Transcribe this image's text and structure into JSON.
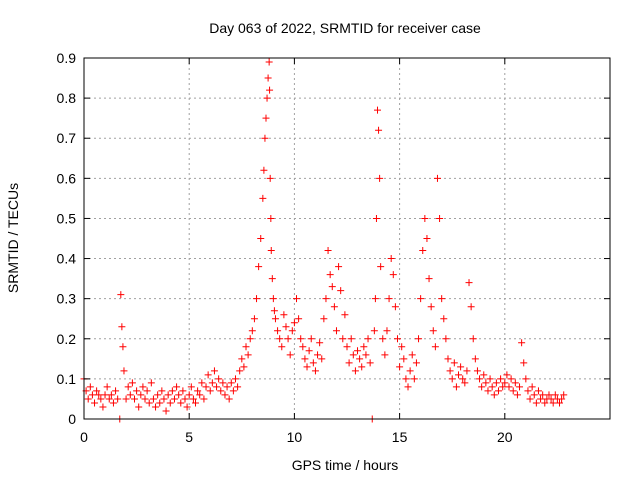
{
  "chart_data": {
    "type": "scatter",
    "title": "Day 063 of 2022, SRMTID for receiver case",
    "xlabel": "GPS time / hours",
    "ylabel": "SRMTID / TECUs",
    "xlim": [
      0,
      25
    ],
    "ylim": [
      0,
      0.9
    ],
    "xticks": [
      0,
      5,
      10,
      15,
      20
    ],
    "yticks": [
      0,
      0.1,
      0.2,
      0.3,
      0.4,
      0.5,
      0.6,
      0.7,
      0.8,
      0.9
    ],
    "xtick_labels": [
      "0",
      "5",
      "10",
      "15",
      "20"
    ],
    "ytick_labels": [
      "0",
      "0.1",
      "0.2",
      "0.3",
      "0.4",
      "0.5",
      "0.6",
      "0.7",
      "0.8",
      "0.9"
    ],
    "grid": true,
    "marker": "+",
    "color": "#ff0000",
    "series": [
      {
        "name": "SRMTID",
        "x": [
          0.0,
          0.1,
          0.2,
          0.3,
          0.4,
          0.5,
          0.6,
          0.7,
          0.8,
          0.9,
          1.0,
          1.1,
          1.2,
          1.3,
          1.4,
          1.5,
          1.6,
          1.7,
          1.75,
          1.8,
          1.85,
          1.9,
          2.0,
          2.1,
          2.2,
          2.3,
          2.4,
          2.5,
          2.6,
          2.7,
          2.8,
          2.9,
          3.0,
          3.1,
          3.2,
          3.3,
          3.4,
          3.5,
          3.6,
          3.7,
          3.8,
          3.9,
          4.0,
          4.1,
          4.2,
          4.3,
          4.4,
          4.5,
          4.6,
          4.7,
          4.8,
          4.9,
          5.0,
          5.1,
          5.2,
          5.3,
          5.4,
          5.5,
          5.6,
          5.7,
          5.8,
          5.9,
          6.0,
          6.1,
          6.2,
          6.3,
          6.4,
          6.5,
          6.6,
          6.7,
          6.8,
          6.9,
          7.0,
          7.1,
          7.2,
          7.3,
          7.4,
          7.5,
          7.6,
          7.7,
          7.8,
          7.9,
          8.0,
          8.1,
          8.2,
          8.3,
          8.4,
          8.5,
          8.55,
          8.6,
          8.65,
          8.7,
          8.75,
          8.8,
          8.82,
          8.85,
          8.88,
          8.9,
          8.95,
          9.0,
          9.05,
          9.1,
          9.2,
          9.3,
          9.4,
          9.5,
          9.6,
          9.7,
          9.8,
          9.9,
          10.0,
          10.1,
          10.2,
          10.3,
          10.4,
          10.5,
          10.6,
          10.7,
          10.8,
          10.9,
          11.0,
          11.1,
          11.2,
          11.3,
          11.4,
          11.5,
          11.6,
          11.7,
          11.8,
          11.9,
          12.0,
          12.1,
          12.2,
          12.3,
          12.4,
          12.5,
          12.6,
          12.7,
          12.8,
          12.9,
          13.0,
          13.1,
          13.2,
          13.3,
          13.4,
          13.5,
          13.6,
          13.7,
          13.8,
          13.85,
          13.9,
          13.95,
          14.0,
          14.05,
          14.1,
          14.2,
          14.3,
          14.4,
          14.5,
          14.6,
          14.7,
          14.8,
          14.9,
          15.0,
          15.1,
          15.2,
          15.3,
          15.4,
          15.5,
          15.6,
          15.7,
          15.8,
          15.9,
          16.0,
          16.1,
          16.2,
          16.3,
          16.4,
          16.5,
          16.6,
          16.7,
          16.8,
          16.9,
          17.0,
          17.1,
          17.2,
          17.3,
          17.4,
          17.5,
          17.6,
          17.7,
          17.8,
          17.9,
          18.0,
          18.1,
          18.2,
          18.3,
          18.4,
          18.5,
          18.6,
          18.7,
          18.8,
          18.9,
          19.0,
          19.1,
          19.2,
          19.3,
          19.4,
          19.5,
          19.6,
          19.7,
          19.8,
          19.9,
          20.0,
          20.1,
          20.2,
          20.3,
          20.4,
          20.5,
          20.6,
          20.7,
          20.8,
          20.9,
          21.0,
          21.1,
          21.2,
          21.3,
          21.4,
          21.5,
          21.6,
          21.7,
          21.8,
          21.9,
          22.0,
          22.1,
          22.2,
          22.3,
          22.4,
          22.5,
          22.6,
          22.7,
          22.8
        ],
        "y": [
          0.1,
          0.07,
          0.05,
          0.08,
          0.06,
          0.04,
          0.07,
          0.06,
          0.05,
          0.03,
          0.06,
          0.08,
          0.05,
          0.06,
          0.04,
          0.07,
          0.05,
          0.0,
          0.31,
          0.23,
          0.18,
          0.12,
          0.05,
          0.08,
          0.06,
          0.09,
          0.05,
          0.07,
          0.03,
          0.06,
          0.08,
          0.05,
          0.07,
          0.04,
          0.09,
          0.05,
          0.03,
          0.06,
          0.04,
          0.07,
          0.05,
          0.02,
          0.06,
          0.04,
          0.07,
          0.05,
          0.08,
          0.06,
          0.04,
          0.07,
          0.05,
          0.03,
          0.06,
          0.08,
          0.05,
          0.04,
          0.07,
          0.06,
          0.09,
          0.05,
          0.08,
          0.11,
          0.07,
          0.09,
          0.12,
          0.08,
          0.1,
          0.07,
          0.09,
          0.06,
          0.08,
          0.05,
          0.09,
          0.07,
          0.1,
          0.08,
          0.12,
          0.15,
          0.13,
          0.18,
          0.16,
          0.2,
          0.22,
          0.25,
          0.3,
          0.38,
          0.45,
          0.55,
          0.62,
          0.7,
          0.75,
          0.8,
          0.85,
          0.89,
          0.82,
          0.6,
          0.5,
          0.42,
          0.35,
          0.3,
          0.27,
          0.25,
          0.22,
          0.2,
          0.18,
          0.26,
          0.23,
          0.2,
          0.16,
          0.22,
          0.24,
          0.3,
          0.25,
          0.2,
          0.18,
          0.15,
          0.13,
          0.17,
          0.2,
          0.14,
          0.12,
          0.16,
          0.19,
          0.15,
          0.25,
          0.3,
          0.42,
          0.36,
          0.33,
          0.28,
          0.22,
          0.38,
          0.32,
          0.2,
          0.26,
          0.18,
          0.14,
          0.2,
          0.16,
          0.12,
          0.17,
          0.15,
          0.13,
          0.18,
          0.16,
          0.2,
          0.14,
          0.0,
          0.22,
          0.3,
          0.5,
          0.77,
          0.72,
          0.6,
          0.38,
          0.2,
          0.16,
          0.22,
          0.3,
          0.4,
          0.36,
          0.28,
          0.2,
          0.13,
          0.18,
          0.15,
          0.1,
          0.08,
          0.12,
          0.16,
          0.1,
          0.14,
          0.2,
          0.3,
          0.42,
          0.5,
          0.45,
          0.35,
          0.28,
          0.22,
          0.18,
          0.6,
          0.5,
          0.3,
          0.25,
          0.2,
          0.15,
          0.12,
          0.1,
          0.14,
          0.08,
          0.11,
          0.13,
          0.1,
          0.09,
          0.12,
          0.34,
          0.28,
          0.2,
          0.15,
          0.12,
          0.1,
          0.08,
          0.11,
          0.09,
          0.07,
          0.1,
          0.08,
          0.06,
          0.09,
          0.07,
          0.1,
          0.08,
          0.09,
          0.11,
          0.08,
          0.1,
          0.07,
          0.09,
          0.06,
          0.08,
          0.19,
          0.14,
          0.1,
          0.07,
          0.05,
          0.08,
          0.06,
          0.04,
          0.07,
          0.05,
          0.06,
          0.04,
          0.05,
          0.06,
          0.05,
          0.04,
          0.06,
          0.05,
          0.04,
          0.05,
          0.06
        ]
      }
    ]
  }
}
